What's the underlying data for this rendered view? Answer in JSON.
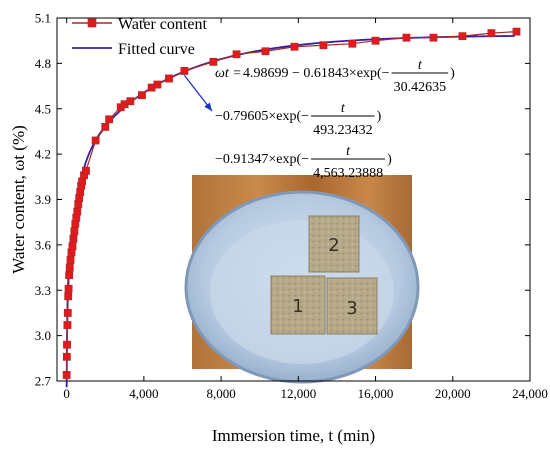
{
  "chart_data": {
    "type": "scatter",
    "xlabel": "Immersion time, t (min)",
    "ylabel": "Water content, ωt (%)",
    "xlim": [
      -500,
      24000
    ],
    "ylim": [
      2.7,
      5.1
    ],
    "xticks": [
      "0",
      "4,000",
      "8,000",
      "12,000",
      "16,000",
      "20,000",
      "24,000"
    ],
    "yticks": [
      "2.7",
      "3.0",
      "3.3",
      "3.6",
      "3.9",
      "4.2",
      "4.5",
      "4.8",
      "5.1"
    ],
    "legend_position": "top-left",
    "series": [
      {
        "name": "Water content",
        "style": "markers-line",
        "color": "#a52a2a",
        "marker_color": "#e31a1c",
        "x": [
          0,
          10,
          20,
          40,
          60,
          80,
          100,
          130,
          160,
          200,
          250,
          300,
          350,
          400,
          450,
          500,
          550,
          600,
          650,
          700,
          750,
          800,
          900,
          1000,
          1500,
          2000,
          2200,
          2800,
          3000,
          3300,
          3900,
          4400,
          4700,
          5300,
          6100,
          7600,
          8800,
          10300,
          11800,
          13300,
          14800,
          16000,
          17600,
          19000,
          20500,
          22000,
          23300
        ],
        "y": [
          2.74,
          2.86,
          2.94,
          3.07,
          3.15,
          3.26,
          3.31,
          3.4,
          3.45,
          3.5,
          3.55,
          3.59,
          3.64,
          3.69,
          3.74,
          3.78,
          3.82,
          3.87,
          3.91,
          3.95,
          3.99,
          4.02,
          4.06,
          4.09,
          4.29,
          4.38,
          4.43,
          4.51,
          4.53,
          4.55,
          4.59,
          4.64,
          4.66,
          4.7,
          4.75,
          4.81,
          4.86,
          4.88,
          4.91,
          4.92,
          4.93,
          4.95,
          4.97,
          4.97,
          4.98,
          5.0,
          5.01
        ]
      },
      {
        "name": "Fitted curve",
        "style": "line",
        "color": "#3c1b9e",
        "model": {
          "a": 4.98699,
          "b": [
            0.61843,
            0.79605,
            0.91347
          ],
          "tau": [
            30.42635,
            493.23432,
            4563.23888
          ]
        }
      }
    ],
    "annotation": {
      "lines": [
        {
          "lhs": "ωt = ",
          "text": "4.98699 − 0.61843×exp(−",
          "num": "t",
          "den": "30.42635",
          "close": ")"
        },
        {
          "lhs": "",
          "text": "−0.79605×exp(−",
          "num": "t",
          "den": "493.23432",
          "close": ")"
        },
        {
          "lhs": "",
          "text": "−0.91347×exp(−",
          "num": "t",
          "den": "4,563.23888",
          "close": ")"
        }
      ],
      "arrow_target_x": 6100
    },
    "inset_photo": {
      "sample_labels": [
        "2",
        "1",
        "3"
      ]
    }
  }
}
